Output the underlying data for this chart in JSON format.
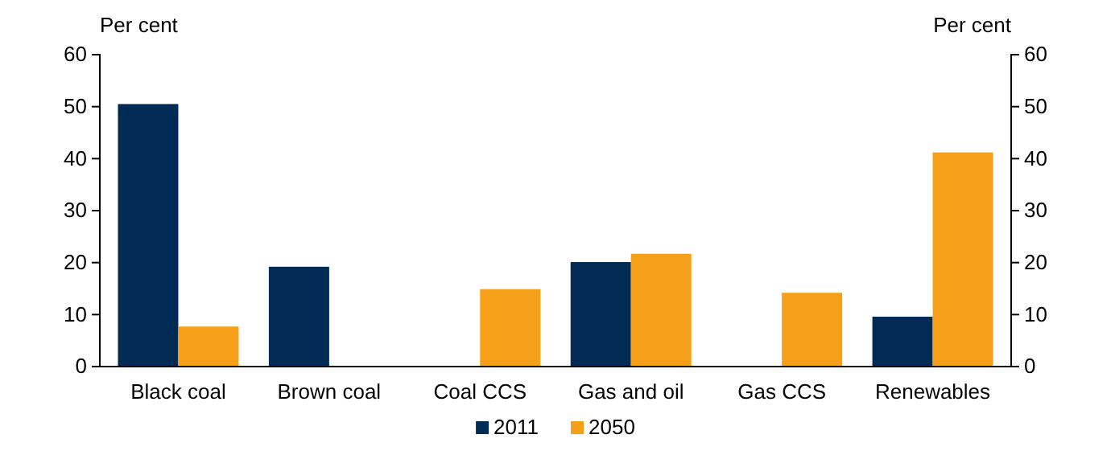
{
  "chart_data": {
    "type": "bar",
    "ylabel": "Per cent",
    "y2label": "Per cent",
    "categories": [
      "Black coal",
      "Brown coal",
      "Coal CCS",
      "Gas and oil",
      "Gas CCS",
      "Renewables"
    ],
    "series": [
      {
        "name": "2011",
        "color": "#002b54",
        "values": [
          50.5,
          19.2,
          0,
          20.1,
          0,
          9.6
        ]
      },
      {
        "name": "2050",
        "color": "#f6a01a",
        "values": [
          7.7,
          0,
          14.9,
          21.7,
          14.2,
          41.2
        ]
      }
    ],
    "ylim": [
      0,
      60
    ],
    "yticks": [
      0,
      10,
      20,
      30,
      40,
      50,
      60
    ],
    "y2lim": [
      0,
      60
    ],
    "y2ticks": [
      0,
      10,
      20,
      30,
      40,
      50,
      60
    ],
    "grid": false,
    "legend": "bottom"
  }
}
